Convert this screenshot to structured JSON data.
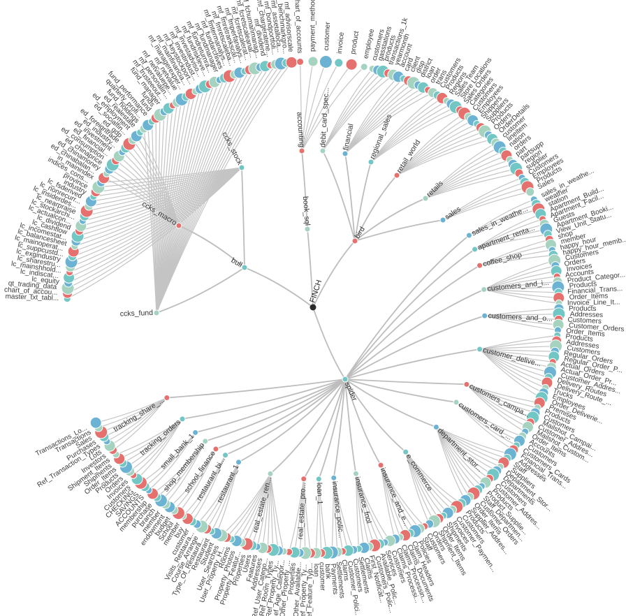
{
  "colors": {
    "teal": "#72c6c4",
    "red": "#e5716f",
    "sage": "#a5d3c0",
    "blue": "#6cb3d3",
    "root": "#2b2b2b",
    "link": "#c4c4c4"
  },
  "diagram": {
    "root": "FINCH",
    "groups": [
      {
        "name": "bull",
        "branches": [
          {
            "name": "ccks_stock",
            "leaves": [
              "master_txt_tabl...",
              "chart_of_accou...",
              "qt_trading_data",
              "lc_equity",
              "lc_indiscat...",
              "lc_mainshhold...",
              "lc_sharestru...",
              "lc_exgindustry",
              "lc_suppcustd...",
              "lc_mainoperat...",
              "lc_balancesheet",
              "lc_incomestat...",
              "lc_cashflow",
              "lc_dividend",
              "lc_actualcon...",
              "lc_stockarchi...",
              "lc_nearpraise",
              "lc_insiderdes...",
              "lc_nonrecurr...",
              "lc_fsderived",
              "industry",
              "province",
              "indices_cons...",
              "in_mainindex"
            ]
          },
          {
            "name": "ccks_macro",
            "leaves": [
              "ed_chinabalan...",
              "ed_chinamoney",
              "ed_chinaprice",
              "ed_consumption",
              "ed_financial...",
              "ed_investment",
              "ed_industry...",
              "ed_foreigntrade",
              "ed_gdp",
              "ed_socialfin...",
              "ed_employment",
              "ed_realestate"
            ]
          },
          {
            "name": "ccks_fund",
            "leaves": [
              "fund_holdings",
              "quarterly_profi...",
              "fund_performance",
              "fund",
              "funds",
              "fund_manager",
              "mf_trusteeout...",
              "mf_personalin...",
              "mf_netvaluepe...",
              "mf_netvalue",
              "mf_managerexper...",
              "mf_mainfinancia...",
              "mf_keystockport...",
              "mf_investindust...",
              "mf_investadviso...",
              "mf_fundriskleve...",
              "mf_fundreturnra...",
              "mf_fundmanager",
              "mf_fundarchives",
              "mf_fmtermanalys...",
              "mf_fmretscaleba...",
              "mf_fmretrankscal...",
              "mf_fmperfanalys...",
              "mf_fcretscalerat...",
              "mf_fcretscaleanal...",
              "mf_fchumanmanag...",
              "mf_dividend",
              "mf_chargeratene...",
              "mf_bondportfoli...",
              "mf_assetalloca...",
              "mf_benchmarkgro...",
              "mf_advisorscale"
            ]
          }
        ]
      },
      {
        "name": "book_sql",
        "branches": [
          {
            "name": "accounting",
            "leaves": [
              "chart_of_accounts",
              "payment_method",
              "customer",
              "invoice",
              "product",
              "employee"
            ]
          }
        ]
      },
      {
        "name": "bird",
        "branches": [
          {
            "name": "debit_card_spec...",
            "leaves": [
              "customers",
              "gasstations",
              "products",
              "transactions_1k",
              "yearmonth"
            ]
          },
          {
            "name": "financial",
            "leaves": [
              "account",
              "card",
              "client",
              "disp",
              "district",
              "loan",
              "order",
              "trans"
            ]
          },
          {
            "name": "regional_sales",
            "leaves": [
              "Customers",
              "Products",
              "Regions",
              "Sales Team",
              "Store Locations",
              "Sales Orders"
            ]
          },
          {
            "name": "retail_world",
            "leaves": [
              "Categories",
              "Customers",
              "Employees",
              "Shippers",
              "Suppliers",
              "Products",
              "Orders",
              "OrderDetails"
            ]
          },
          {
            "name": "retails",
            "leaves": [
              "customer",
              "lineitem",
              "nation",
              "orders",
              "part",
              "partsupp",
              "region",
              "supplier"
            ]
          },
          {
            "name": "sales",
            "leaves": [
              "Customers",
              "Employees",
              "Products",
              "Sales"
            ]
          }
        ]
      },
      {
        "name": "spider",
        "branches": [
          {
            "name": "sales_in_weathe...",
            "leaves": [
              "sales_in_weathe...",
              "weather",
              "station"
            ]
          },
          {
            "name": "apartment_renta...",
            "leaves": [
              "Apartment_Build...",
              "Apartment_Facil...",
              "Guests",
              "Apartment_Booki...",
              "View_Unit_Statu..."
            ]
          },
          {
            "name": "coffee_shop",
            "leaves": [
              "shop",
              "member",
              "happy_hour",
              "happy_hour_memb..."
            ]
          },
          {
            "name": "customers_and_i...",
            "leaves": [
              "Customers",
              "Orders",
              "Invoices",
              "Accounts",
              "Product_Categor...",
              "Products",
              "Financial_Trans...",
              "Order_Items",
              "Invoice_Line_It..."
            ]
          },
          {
            "name": "customers_and_o...",
            "leaves": [
              "Products",
              "Addresses",
              "Customers",
              "Customer_Orders",
              "Order_Items"
            ]
          },
          {
            "name": "customer_delive...",
            "leaves": [
              "Products",
              "Addresses",
              "Customers",
              "Regular_Orders",
              "Regular_Order_P...",
              "Actual_Orders",
              "Actual_Order_Pr...",
              "Customer_Addres...",
              "Delivery_Routes",
              "Delivery_Route_...",
              "Trucks",
              "Employees",
              "Order_Deliverie..."
            ]
          },
          {
            "name": "customers_campa...",
            "leaves": [
              "Premises",
              "Products",
              "Customers",
              "Mailshot_Campai...",
              "Customer_Addres...",
              "Mailshot_Custom...",
              "Order_Items"
            ]
          },
          {
            "name": "customers_card_...",
            "leaves": [
              "Accounts",
              "Customers",
              "Customers_Cards",
              "Financial_Trans..."
            ]
          },
          {
            "name": "department_stor...",
            "leaves": [
              "Addresses",
              "Staff",
              "Suppliers",
              "Department_Stor...",
              "Departments",
              "Customers",
              "Customer_Addres...",
              "Products",
              "Product_Supplie...",
              "Staff_Departmen...",
              "Customer_Orders",
              "Order_Items",
              "Supplier_Addres..."
            ]
          },
          {
            "name": "e_commerce",
            "leaves": [
              "Products",
              "Customers",
              "Customer_Paymen...",
              "Invoices",
              "Shipments",
              "Order_Items",
              "Shipment_Items",
              "Orders"
            ]
          },
          {
            "name": "insurance_and_e...",
            "leaves": [
              "Customers",
              "Staff",
              "Policies",
              "Claim_Headers",
              "Claims_Documents",
              "Claims_Processin...",
              "Claims_Processi..."
            ]
          },
          {
            "name": "insurance_fnol",
            "leaves": [
              "Customers",
              "Services",
              "Available_Polic...",
              "Customers_Polic...",
              "First_Notificat...",
              "Claims",
              "Settlements"
            ]
          },
          {
            "name": "insurance_polic...",
            "leaves": [
              "Customers",
              "Customer_Polici...",
              "Claims",
              "Settlements",
              "Payments"
            ]
          },
          {
            "name": "loan_1",
            "leaves": [
              "bank",
              "customer",
              "loan"
            ]
          },
          {
            "name": "real_estate_pro...",
            "leaves": [
              "Ref_Feature_Typ...",
              "Ref_Property_Ty...",
              "Other_Available...",
              "Properties",
              "Other_Property_..."
            ]
          },
          {
            "name": "real_estate_ren...",
            "leaves": [
              "Ref_Age_Categor...",
              "Ref_Property_Ty...",
              "Ref_Room_Types",
              "Ref_User_Catego...",
              "Addresses",
              "Features",
              "Users",
              "Properties",
              "Property_Featur...",
              "Property_Photos",
              "Rooms",
              "User_Property_H...",
              "User_Searches"
            ]
          },
          {
            "name": "restaurant_1",
            "leaves": [
              "Student",
              "Restaurant",
              "Type_Of_Restaura...",
              "Course_Arrange",
              "Visits_Restaura..."
            ]
          },
          {
            "name": "restaurant_bi...",
            "leaves": [
              "customer",
              "buy",
              "member"
            ]
          },
          {
            "name": "school_finance",
            "leaves": [
              "School",
              "budget",
              "endowment"
            ]
          },
          {
            "name": "shop_membership",
            "leaves": [
              "member",
              "branch",
              "purchase",
              "membership"
            ]
          },
          {
            "name": "small_bank_1",
            "leaves": [
              "ACCOUNTS",
              "SAVINGS",
              "CHECKING"
            ]
          },
          {
            "name": "tracking_orders",
            "leaves": [
              "Customers",
              "Invoices",
              "Orders",
              "Products",
              "Order_Items",
              "Shipments",
              "Shipment_Items"
            ]
          },
          {
            "name": "tracking_share_...",
            "leaves": [
              "Investors",
              "Lots",
              "Ref_Transaction_Types",
              "Purchases",
              "Sales",
              "Transactions",
              "Transactions_Lo..."
            ]
          }
        ]
      }
    ]
  }
}
